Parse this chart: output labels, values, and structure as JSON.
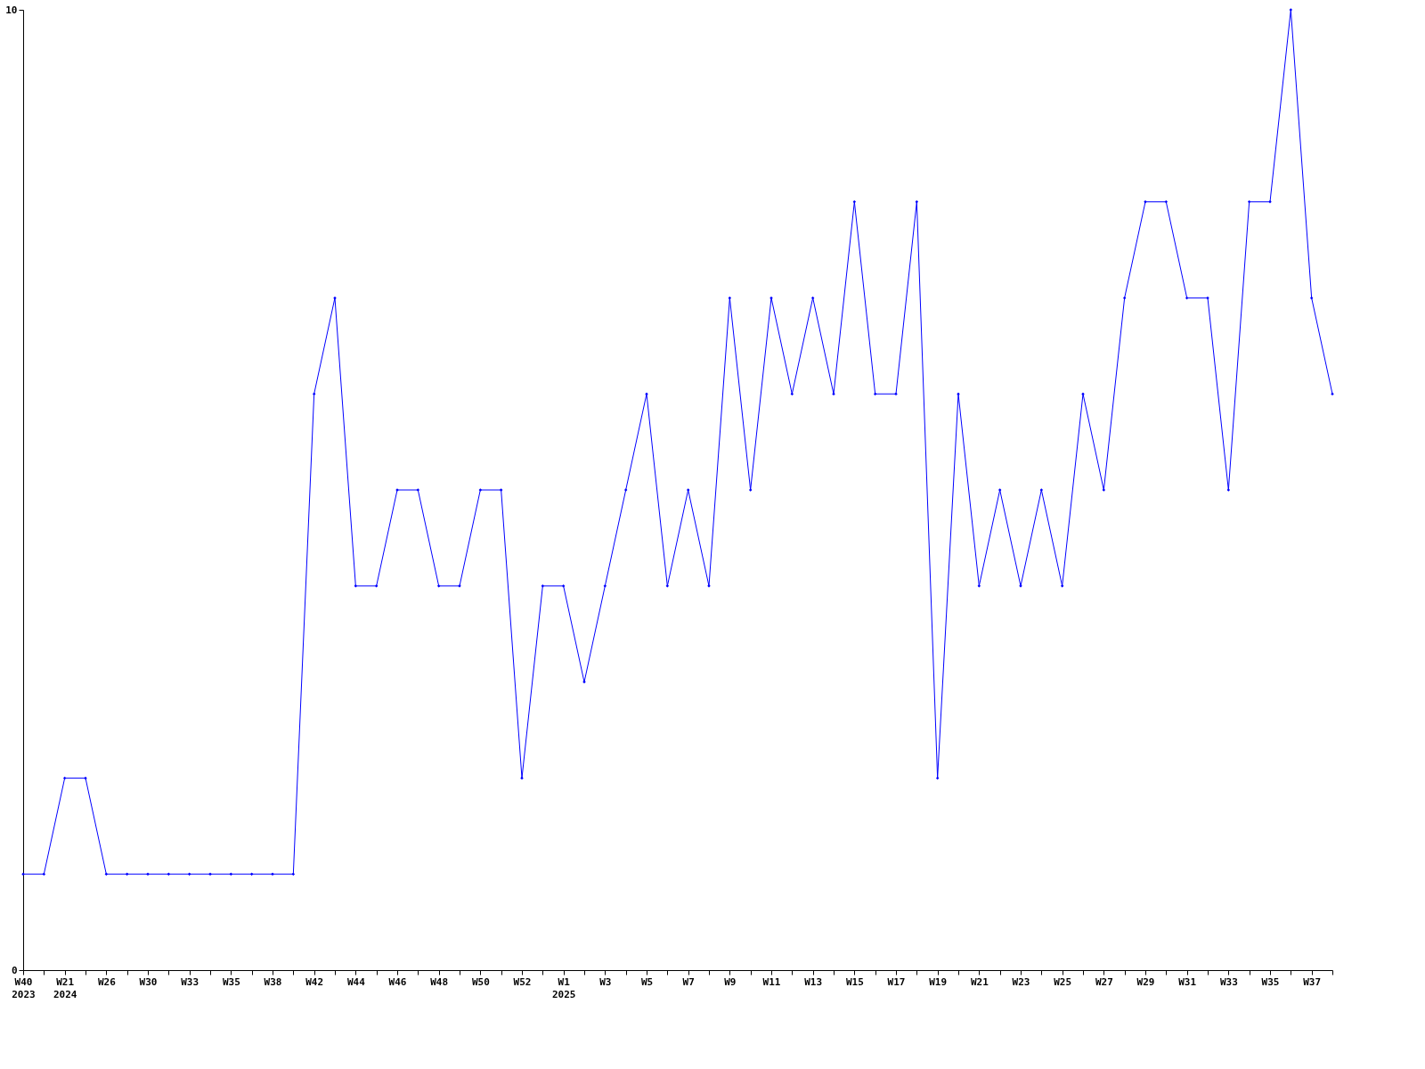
{
  "chart_data": {
    "type": "line",
    "categories": [
      "W40\n2023",
      null,
      "W21\n2024",
      null,
      "W26",
      null,
      "W30",
      null,
      "W33",
      null,
      "W35",
      null,
      "W38",
      null,
      "W42",
      null,
      "W44",
      null,
      "W46",
      null,
      "W48",
      null,
      "W50",
      null,
      "W52",
      null,
      "W1\n2025",
      null,
      "W3",
      null,
      "W5",
      null,
      "W7",
      null,
      "W9",
      null,
      "W11",
      null,
      "W13",
      null,
      "W15",
      null,
      "W17",
      null,
      "W19",
      null,
      "W21",
      null,
      "W23",
      null,
      "W25",
      null,
      "W27",
      null,
      "W29",
      null,
      "W31",
      null,
      "W33",
      null,
      "W35",
      null,
      "W37",
      null
    ],
    "series": [
      {
        "color": "#0000ff",
        "values": [
          1,
          1,
          2,
          2,
          1,
          1,
          1,
          1,
          1,
          1,
          1,
          1,
          1,
          1,
          6,
          7,
          4,
          4,
          5,
          5,
          4,
          4,
          5,
          5,
          2,
          4,
          4,
          3,
          4,
          5,
          6,
          4,
          5,
          4,
          7,
          5,
          7,
          6,
          7,
          6,
          8,
          6,
          6,
          8,
          2,
          6,
          4,
          5,
          4,
          5,
          4,
          6,
          5,
          7,
          8,
          8,
          7,
          7,
          5,
          8,
          8,
          10,
          7,
          6
        ]
      }
    ],
    "ylim": [
      0,
      10
    ],
    "yticks": [
      0,
      10
    ],
    "marker": "diamond",
    "line_style": "solid"
  }
}
